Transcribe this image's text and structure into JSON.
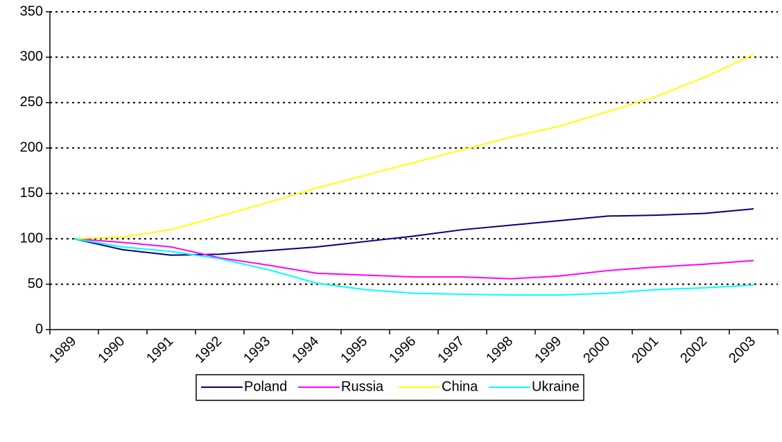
{
  "chart_data": {
    "type": "line",
    "categories": [
      "1989",
      "1990",
      "1991",
      "1992",
      "1993",
      "1994",
      "1995",
      "1996",
      "1997",
      "1998",
      "1999",
      "2000",
      "2001",
      "2002",
      "2003"
    ],
    "series": [
      {
        "name": "Poland",
        "color": "#000080",
        "values": [
          100,
          88,
          82,
          83,
          87,
          91,
          97,
          103,
          110,
          115,
          120,
          125,
          126,
          128,
          133
        ]
      },
      {
        "name": "Russia",
        "color": "#ff00ff",
        "values": [
          100,
          96,
          91,
          79,
          71,
          62,
          60,
          58,
          58,
          56,
          59,
          65,
          69,
          72,
          76
        ]
      },
      {
        "name": "China",
        "color": "#ffff00",
        "values": [
          100,
          102,
          110,
          125,
          140,
          156,
          170,
          184,
          198,
          212,
          224,
          240,
          257,
          278,
          303
        ]
      },
      {
        "name": "Ukraine",
        "color": "#00ffff",
        "values": [
          100,
          91,
          86,
          78,
          66,
          51,
          44,
          40,
          39,
          38,
          38,
          40,
          44,
          46,
          49
        ]
      }
    ],
    "ylim": [
      0,
      350
    ],
    "yticks": [
      0,
      50,
      100,
      150,
      200,
      250,
      300,
      350
    ],
    "grid": true,
    "legend": "bottom"
  }
}
